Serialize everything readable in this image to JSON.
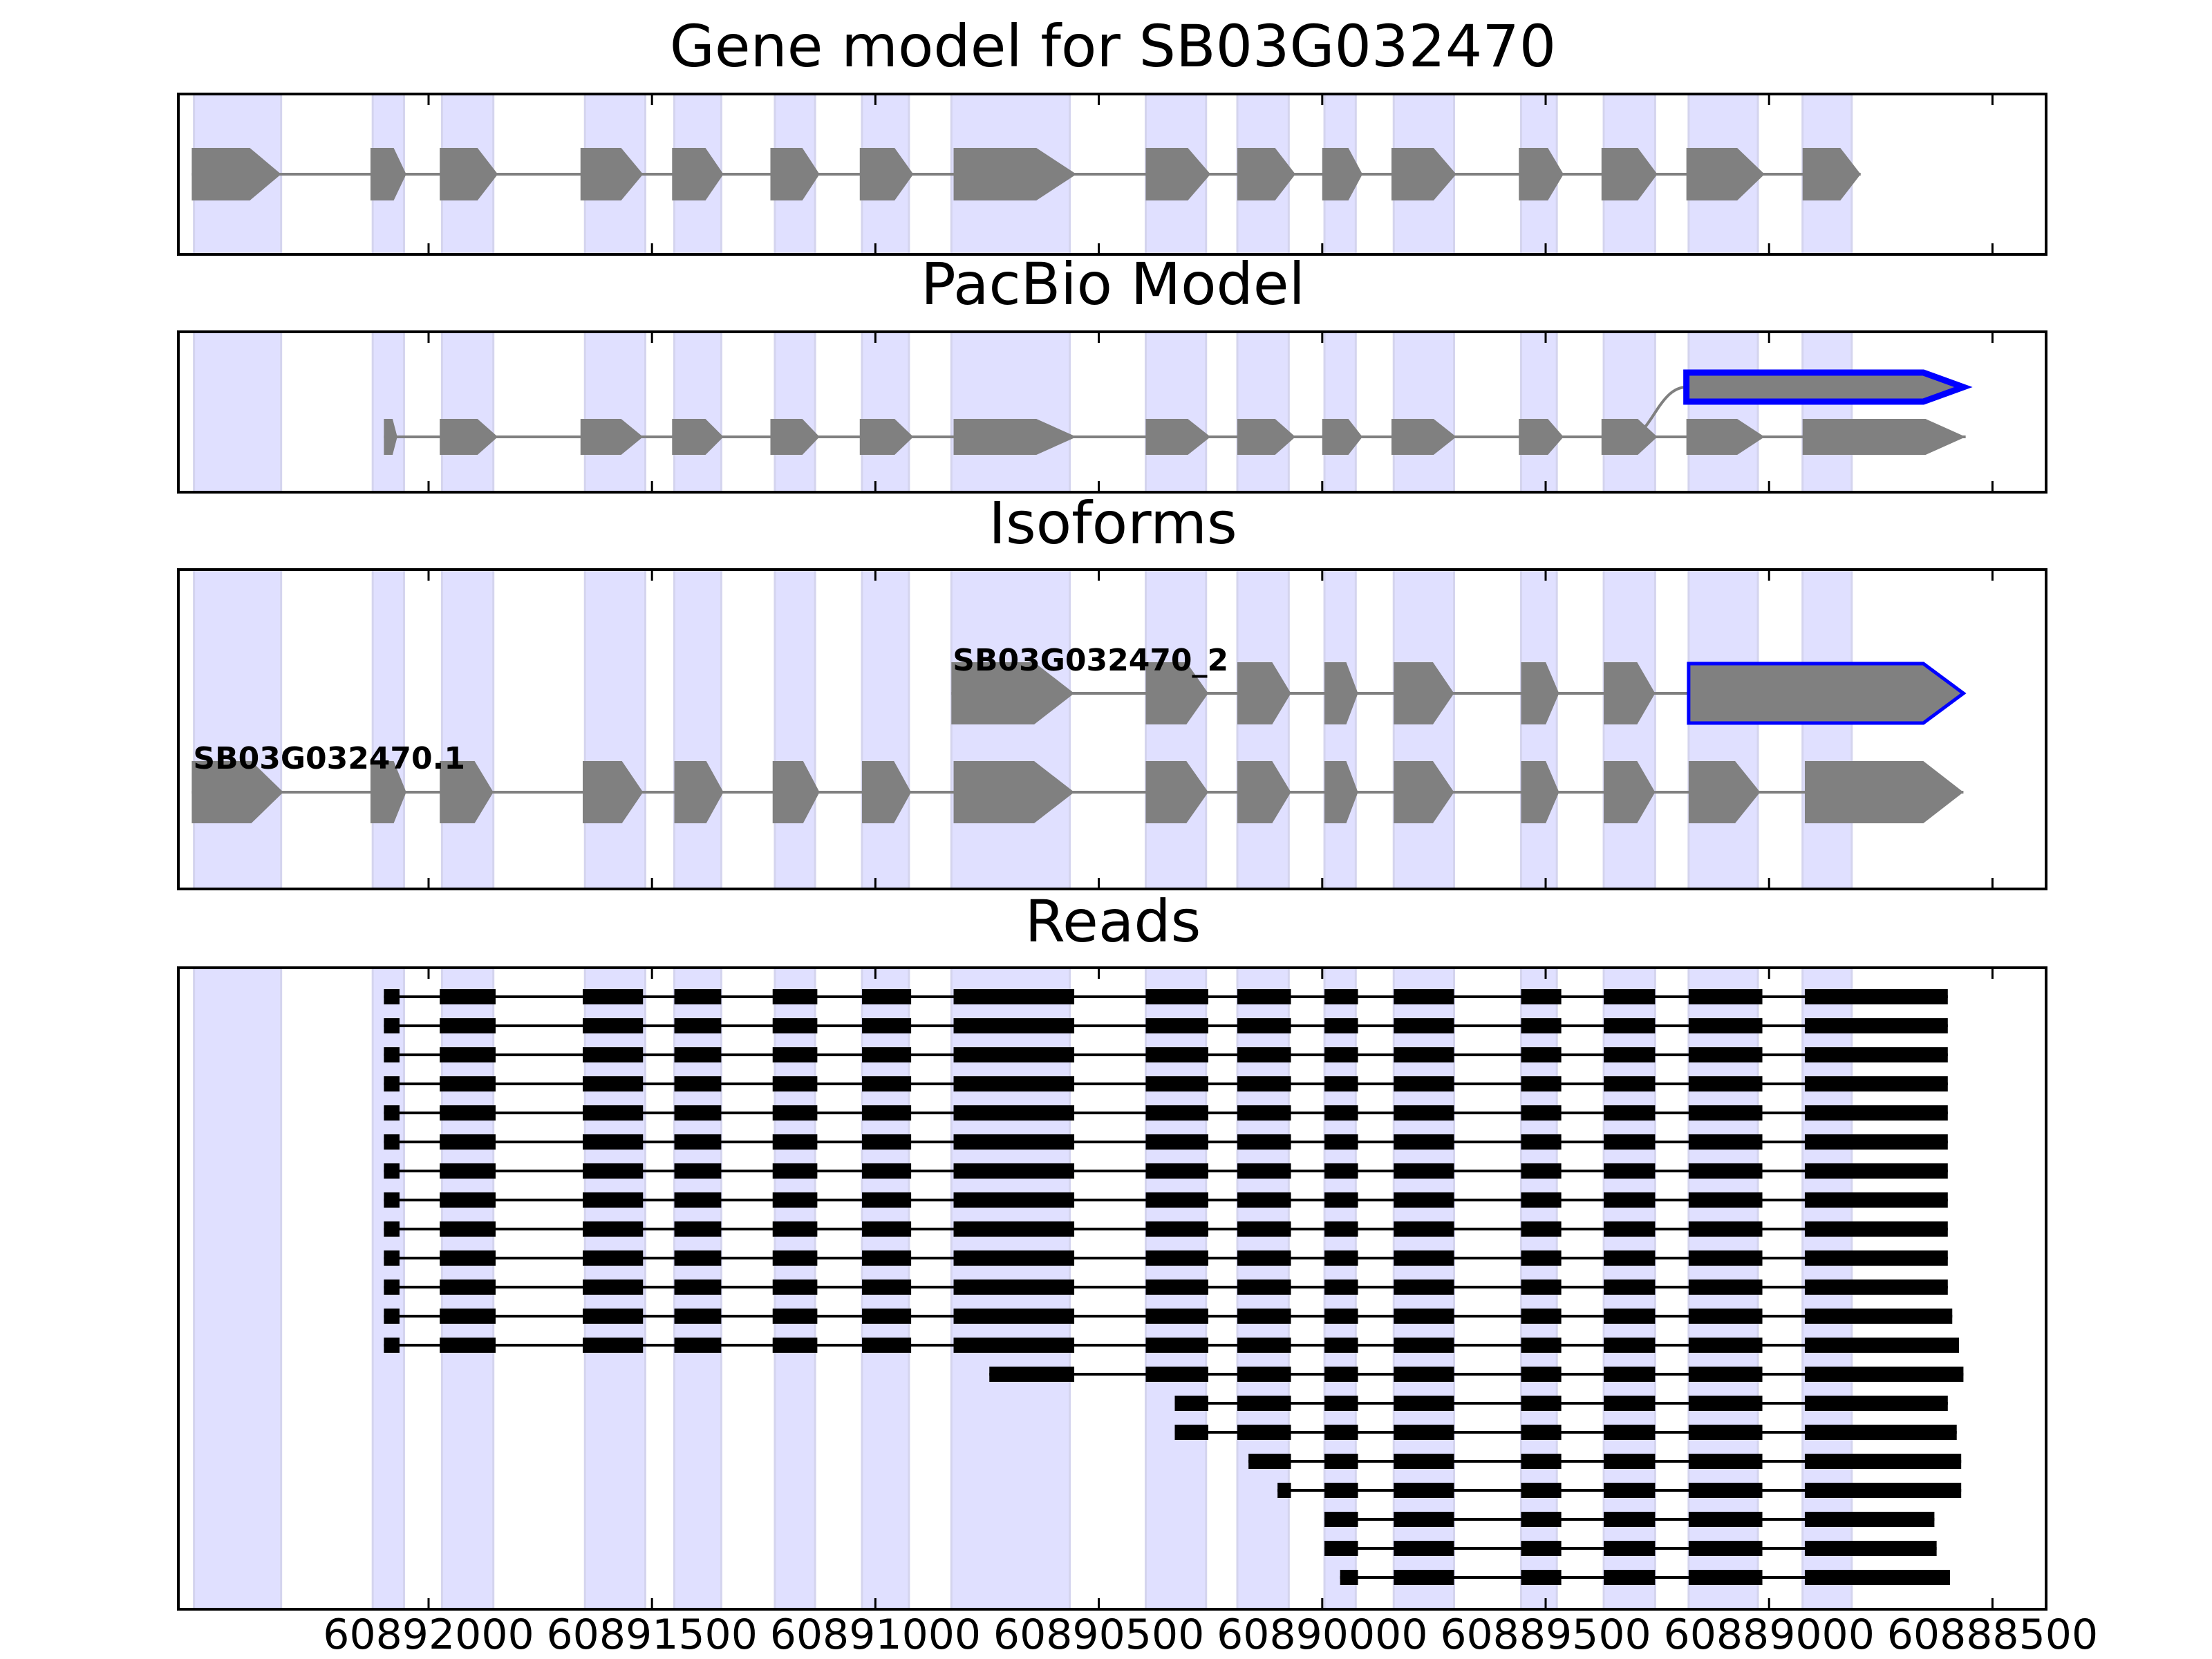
{
  "figure": {
    "title_main": "Gene model for SB03G032470",
    "title_pacbio": "PacBio Model",
    "title_isoforms": "Isoforms",
    "title_reads": "Reads"
  },
  "colors": {
    "exon_fill": "#808080",
    "intron_line": "#808080",
    "highlight_edge": "#0000ff",
    "exon_band": "#e0e0ff",
    "read_color": "#000000",
    "frame": "#000000"
  },
  "chart_data": {
    "type": "gene-model",
    "orientation": "minus strand (coordinates decrease left to right)",
    "x_axis": {
      "xlim": [
        60892560,
        60888380
      ],
      "ticks": [
        60892000,
        60891500,
        60891000,
        60890500,
        60890000,
        60889500,
        60889000,
        60888500
      ],
      "tick_labels": [
        "60892000",
        "60891500",
        "60891000",
        "60890500",
        "60890000",
        "60889500",
        "60889000",
        "60888500"
      ]
    },
    "exon_bands": [
      [
        60892525,
        60892330
      ],
      [
        60892125,
        60892055
      ],
      [
        60891970,
        60891855
      ],
      [
        60891650,
        60891515
      ],
      [
        60891450,
        60891345
      ],
      [
        60891225,
        60891135
      ],
      [
        60891030,
        60890925
      ],
      [
        60890830,
        60890565
      ],
      [
        60890395,
        60890260
      ],
      [
        60890190,
        60890075
      ],
      [
        60889995,
        60889925
      ],
      [
        60889840,
        60889705
      ],
      [
        60889555,
        60889475
      ],
      [
        60889370,
        60889255
      ],
      [
        60889180,
        60889025
      ],
      [
        60888925,
        60888815
      ]
    ],
    "gene_model": {
      "exons": [
        [
          60892530,
          60892330
        ],
        [
          60892130,
          60892050
        ],
        [
          60891975,
          60891845
        ],
        [
          60891660,
          60891520
        ],
        [
          60891455,
          60891340
        ],
        [
          60891235,
          60891125
        ],
        [
          60891035,
          60890915
        ],
        [
          60890825,
          60890550
        ],
        [
          60890395,
          60890250
        ],
        [
          60890190,
          60890060
        ],
        [
          60890000,
          60889910
        ],
        [
          60889845,
          60889700
        ],
        [
          60889560,
          60889460
        ],
        [
          60889375,
          60889250
        ],
        [
          60889185,
          60889010
        ],
        [
          60888925,
          60888795
        ]
      ]
    },
    "pacbio_model": {
      "lower": {
        "exons": [
          [
            60892100,
            60892070
          ],
          [
            60891975,
            60891845
          ],
          [
            60891660,
            60891520
          ],
          [
            60891455,
            60891340
          ],
          [
            60891235,
            60891125
          ],
          [
            60891035,
            60890915
          ],
          [
            60890825,
            60890550
          ],
          [
            60890395,
            60890250
          ],
          [
            60890190,
            60890060
          ],
          [
            60890000,
            60889910
          ],
          [
            60889845,
            60889700
          ],
          [
            60889560,
            60889460
          ],
          [
            60889375,
            60889250
          ],
          [
            60889185,
            60889010
          ],
          [
            60888925,
            60888560
          ]
        ]
      },
      "upper": {
        "highlighted": true,
        "exons": [
          [
            60889185,
            60888565
          ]
        ],
        "branch_from": 60889250
      }
    },
    "isoforms": [
      {
        "name": "SB03G032470.1",
        "exons": [
          [
            60892530,
            60892325
          ],
          [
            60892130,
            60892050
          ],
          [
            60891975,
            60891855
          ],
          [
            60891655,
            60891520
          ],
          [
            60891450,
            60891340
          ],
          [
            60891230,
            60891125
          ],
          [
            60891030,
            60890920
          ],
          [
            60890825,
            60890555
          ],
          [
            60890395,
            60890255
          ],
          [
            60890190,
            60890070
          ],
          [
            60889995,
            60889920
          ],
          [
            60889840,
            60889705
          ],
          [
            60889555,
            60889470
          ],
          [
            60889370,
            60889255
          ],
          [
            60889180,
            60889020
          ],
          [
            60888920,
            60888565
          ]
        ]
      },
      {
        "name": "SB03G032470_2",
        "exons": [
          [
            60890830,
            60890555
          ],
          [
            60890395,
            60890255
          ],
          [
            60890190,
            60890070
          ],
          [
            60889995,
            60889920
          ],
          [
            60889840,
            60889705
          ],
          [
            60889555,
            60889470
          ],
          [
            60889370,
            60889255
          ]
        ],
        "highlighted_exon": [
          60889180,
          60888565
        ]
      }
    ],
    "read_exons_full": [
      [
        60892100,
        60892065
      ],
      [
        60891975,
        60891850
      ],
      [
        60891655,
        60891520
      ],
      [
        60891450,
        60891345
      ],
      [
        60891230,
        60891130
      ],
      [
        60891030,
        60890920
      ],
      [
        60890825,
        60890555
      ],
      [
        60890395,
        60890255
      ],
      [
        60890190,
        60890070
      ],
      [
        60889995,
        60889920
      ],
      [
        60889840,
        60889705
      ],
      [
        60889555,
        60889465
      ],
      [
        60889370,
        60889255
      ],
      [
        60889180,
        60889015
      ]
    ],
    "reads": [
      {
        "start": 60892100,
        "end": 60888600
      },
      {
        "start": 60892100,
        "end": 60888600
      },
      {
        "start": 60892100,
        "end": 60888600
      },
      {
        "start": 60892100,
        "end": 60888600
      },
      {
        "start": 60892100,
        "end": 60888600
      },
      {
        "start": 60892100,
        "end": 60888600
      },
      {
        "start": 60892100,
        "end": 60888600
      },
      {
        "start": 60892100,
        "end": 60888600
      },
      {
        "start": 60892100,
        "end": 60888600
      },
      {
        "start": 60892100,
        "end": 60888600
      },
      {
        "start": 60892100,
        "end": 60888600
      },
      {
        "start": 60892100,
        "end": 60888590
      },
      {
        "start": 60892100,
        "end": 60888575
      },
      {
        "start": 60890745,
        "end": 60888565
      },
      {
        "start": 60890330,
        "end": 60888600
      },
      {
        "start": 60890330,
        "end": 60888580
      },
      {
        "start": 60890165,
        "end": 60888570
      },
      {
        "start": 60890100,
        "end": 60888570
      },
      {
        "start": 60889995,
        "end": 60888630
      },
      {
        "start": 60889995,
        "end": 60888625
      },
      {
        "start": 60889960,
        "end": 60888595
      }
    ]
  }
}
